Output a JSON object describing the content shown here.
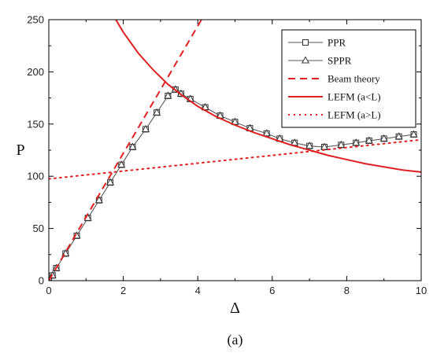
{
  "chart_data": {
    "type": "line",
    "xlabel": "Δ",
    "ylabel": "P",
    "caption": "(a)",
    "xlim": [
      0,
      10
    ],
    "ylim": [
      0,
      250
    ],
    "xticks": [
      0,
      2,
      4,
      6,
      8,
      10
    ],
    "yticks": [
      0,
      50,
      100,
      150,
      200,
      250
    ],
    "legend": {
      "position": "top-right"
    },
    "series": [
      {
        "name": "PPR",
        "style": "thin-line-square-markers",
        "color": "#555555",
        "x": [
          0,
          0.1,
          0.2,
          0.45,
          0.75,
          1.05,
          1.35,
          1.65,
          1.95,
          2.25,
          2.6,
          2.9,
          3.2,
          3.4,
          3.55,
          3.8,
          4.2,
          4.6,
          5.0,
          5.4,
          5.85,
          6.2,
          6.6,
          7.0,
          7.4,
          7.85,
          8.25,
          8.6,
          9.0,
          9.4,
          9.8
        ],
        "y": [
          0,
          5,
          12,
          26,
          43,
          60,
          77,
          94,
          111,
          128,
          145,
          161,
          177,
          183,
          179,
          174,
          166,
          158,
          152,
          146,
          141,
          136,
          132,
          129,
          128,
          130,
          132,
          134,
          136,
          138,
          140
        ]
      },
      {
        "name": "SPPR",
        "style": "thin-line-triangle-markers",
        "color": "#555555",
        "x": [
          0,
          0.1,
          0.2,
          0.45,
          0.75,
          1.05,
          1.35,
          1.65,
          1.95,
          2.25,
          2.6,
          2.9,
          3.2,
          3.4,
          3.55,
          3.8,
          4.2,
          4.6,
          5.0,
          5.4,
          5.85,
          6.2,
          6.6,
          7.0,
          7.4,
          7.85,
          8.25,
          8.6,
          9.0,
          9.4,
          9.8
        ],
        "y": [
          0,
          5,
          12,
          26,
          43,
          60,
          77,
          94,
          111,
          128,
          145,
          161,
          177,
          183,
          179,
          174,
          166,
          158,
          152,
          146,
          141,
          136,
          132,
          129,
          128,
          130,
          132,
          134,
          136,
          138,
          140
        ]
      },
      {
        "name": "Beam theory",
        "style": "dashed",
        "color": "#e02020",
        "x": [
          0,
          4.1
        ],
        "y": [
          0,
          250
        ]
      },
      {
        "name": "LEFM (a<L)",
        "style": "solid",
        "color": "#e02020",
        "x": [
          1.8,
          2.0,
          2.4,
          2.8,
          3.2,
          3.6,
          4.0,
          4.5,
          5.0,
          5.5,
          6.0,
          6.5,
          7.0,
          7.5,
          8.0,
          8.5,
          9.0,
          9.5,
          10.0
        ],
        "y": [
          250,
          238,
          218,
          202,
          188,
          177,
          167,
          157,
          149,
          142,
          136,
          130,
          125,
          120,
          116,
          112,
          109,
          106,
          104
        ]
      },
      {
        "name": "LEFM (a>L)",
        "style": "dotted",
        "color": "#e02020",
        "x": [
          0,
          10
        ],
        "y": [
          97.5,
          135
        ]
      }
    ]
  }
}
